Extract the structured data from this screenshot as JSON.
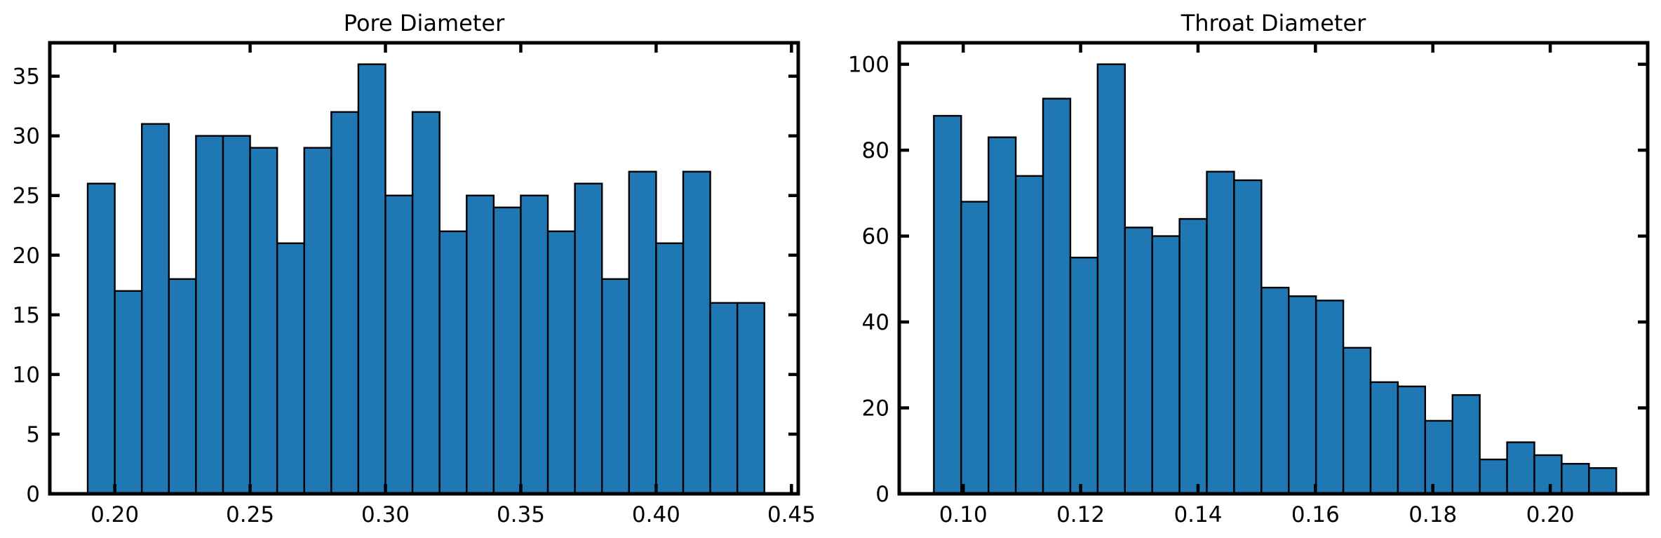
{
  "chart_data": [
    {
      "type": "bar",
      "title": "Pore Diameter",
      "xlabel": "",
      "ylabel": "",
      "bin_start": 0.19,
      "bin_width": 0.01,
      "values": [
        26,
        17,
        31,
        18,
        30,
        30,
        29,
        21,
        29,
        32,
        36,
        25,
        32,
        22,
        25,
        24,
        25,
        22,
        26,
        18,
        27,
        21,
        27,
        16,
        16
      ],
      "xlim": [
        0.176,
        0.4525
      ],
      "ylim": [
        0,
        37.8
      ],
      "xticks": [
        0.2,
        0.25,
        0.3,
        0.35,
        0.4,
        0.45
      ],
      "xtick_labels": [
        "0.20",
        "0.25",
        "0.30",
        "0.35",
        "0.40",
        "0.45"
      ],
      "yticks": [
        0,
        5,
        10,
        15,
        20,
        25,
        30,
        35
      ],
      "ytick_labels": [
        "0",
        "5",
        "10",
        "15",
        "20",
        "25",
        "30",
        "35"
      ],
      "grid": false,
      "bar_color": "#1f77b4",
      "edge_color": "#000000"
    },
    {
      "type": "bar",
      "title": "Throat Diameter",
      "xlabel": "",
      "ylabel": "",
      "bin_start": 0.095,
      "bin_width": 0.00465,
      "values": [
        88,
        68,
        83,
        74,
        92,
        55,
        100,
        62,
        60,
        64,
        75,
        73,
        48,
        46,
        45,
        34,
        26,
        25,
        17,
        23,
        8,
        12,
        9,
        7,
        6
      ],
      "xlim": [
        0.0891,
        0.2166
      ],
      "ylim": [
        0,
        105
      ],
      "xticks": [
        0.1,
        0.12,
        0.14,
        0.16,
        0.18,
        0.2
      ],
      "xtick_labels": [
        "0.10",
        "0.12",
        "0.14",
        "0.16",
        "0.18",
        "0.20"
      ],
      "yticks": [
        0,
        20,
        40,
        60,
        80,
        100
      ],
      "ytick_labels": [
        "0",
        "20",
        "40",
        "60",
        "80",
        "100"
      ],
      "grid": false,
      "bar_color": "#1f77b4",
      "edge_color": "#000000"
    }
  ]
}
